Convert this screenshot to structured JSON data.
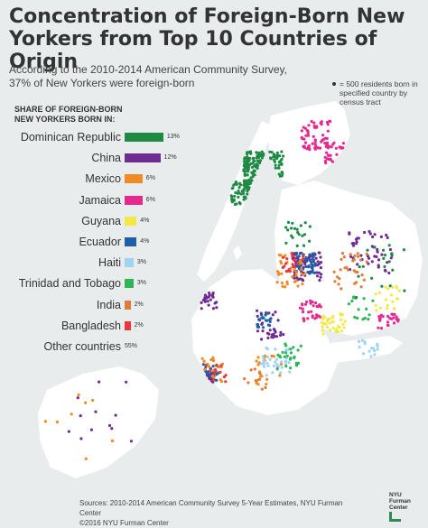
{
  "title": "Concentration of Foreign-Born New Yorkers from Top 10 Countries of Origin",
  "subtitle": "According to the 2010-2014 American Community Survey, 37% of New Yorkers were foreign-born",
  "dot_legend": "= 500 residents born in specified country by census tract",
  "share_heading": "SHARE OF FOREIGN-BORN NEW YORKERS BORN IN:",
  "countries": [
    {
      "name": "Dominican Republic",
      "pct": "13%",
      "value": 13,
      "color": "#1e8a44"
    },
    {
      "name": "China",
      "pct": "12%",
      "value": 12,
      "color": "#6f2c91"
    },
    {
      "name": "Mexico",
      "pct": "6%",
      "value": 6,
      "color": "#f08a24"
    },
    {
      "name": "Jamaica",
      "pct": "6%",
      "value": 6,
      "color": "#e6288f"
    },
    {
      "name": "Guyana",
      "pct": "4%",
      "value": 4,
      "color": "#f2e84a"
    },
    {
      "name": "Ecuador",
      "pct": "4%",
      "value": 4,
      "color": "#1f5fa8"
    },
    {
      "name": "Haiti",
      "pct": "3%",
      "value": 3,
      "color": "#9fd3f2"
    },
    {
      "name": "Trinidad and Tobago",
      "pct": "3%",
      "value": 3,
      "color": "#2fb45a"
    },
    {
      "name": "India",
      "pct": "2%",
      "value": 2,
      "color": "#e07b3a"
    },
    {
      "name": "Bangladesh",
      "pct": "2%",
      "value": 2,
      "color": "#e8383d"
    }
  ],
  "other": {
    "name": "Other countries",
    "pct": "55%",
    "value": 55
  },
  "sources": "Sources: 2010-2014 American Community Survey 5-Year Estimates, NYU Furman Center",
  "copyright": "©2016 NYU Furman Center",
  "logo_text": "NYU Furman Center",
  "colors": {
    "background": "#e9ecec",
    "land": "#ffffff",
    "text": "#333333",
    "logo_accent": "#2e8b57"
  }
}
